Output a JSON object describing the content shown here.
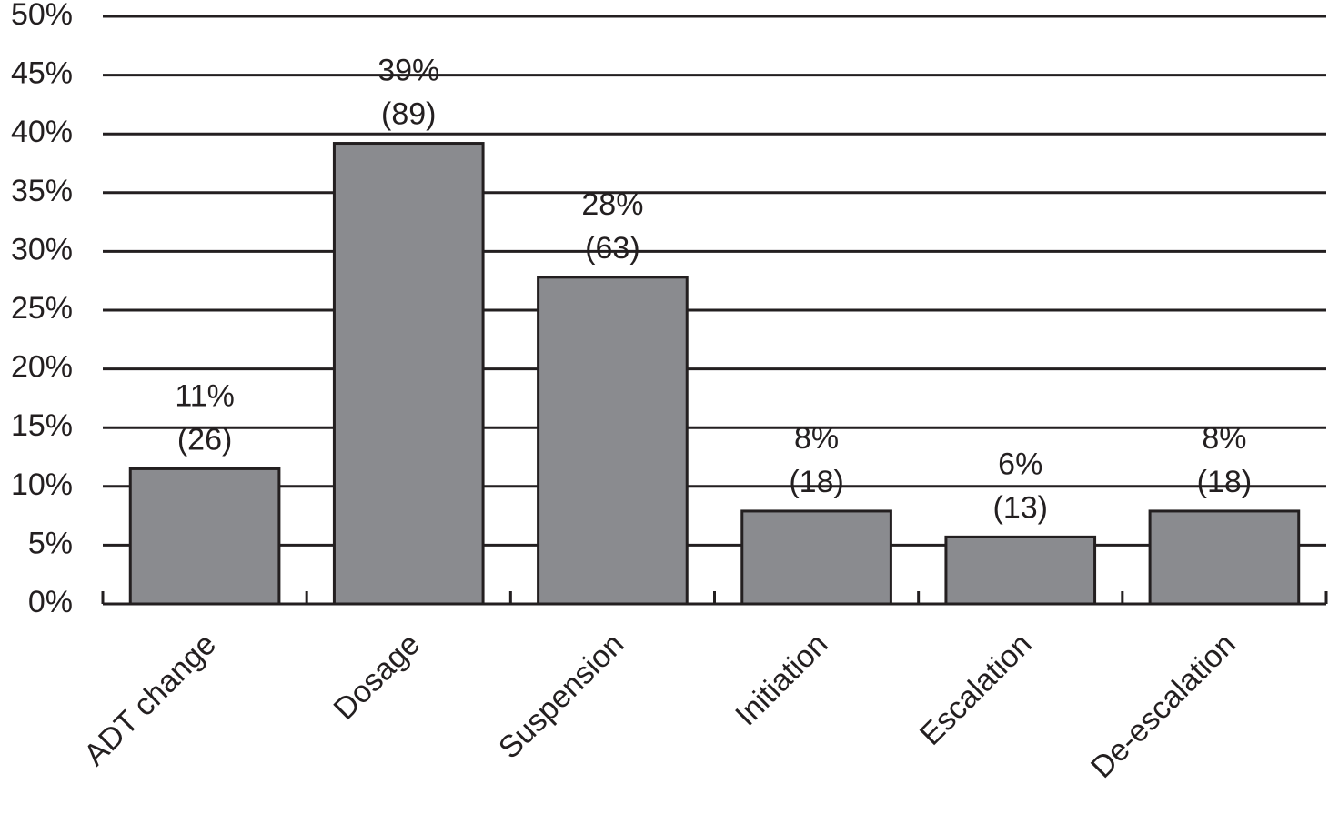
{
  "chart_data": {
    "type": "bar",
    "categories": [
      "ADT change",
      "Dosage",
      "Suspension",
      "Initiation",
      "Escalation",
      "De-escalation"
    ],
    "values": [
      11.5,
      39.2,
      27.8,
      7.9,
      5.7,
      7.9
    ],
    "value_labels": [
      "11%",
      "39%",
      "28%",
      "8%",
      "6%",
      "8%"
    ],
    "count_labels": [
      "(26)",
      "(89)",
      "(63)",
      "(18)",
      "(13)",
      "(18)"
    ],
    "color": "#8a8b8f",
    "ylim": [
      0,
      50
    ],
    "yticks": [
      {
        "value": 0,
        "label": "0%"
      },
      {
        "value": 5,
        "label": "5%"
      },
      {
        "value": 10,
        "label": "10%"
      },
      {
        "value": 15,
        "label": "15%"
      },
      {
        "value": 20,
        "label": "20%"
      },
      {
        "value": 25,
        "label": "25%"
      },
      {
        "value": 30,
        "label": "30%"
      },
      {
        "value": 35,
        "label": "35%"
      },
      {
        "value": 40,
        "label": "40%"
      },
      {
        "value": 45,
        "label": "45%"
      },
      {
        "value": 50,
        "label": "50%"
      }
    ],
    "grid": true
  }
}
